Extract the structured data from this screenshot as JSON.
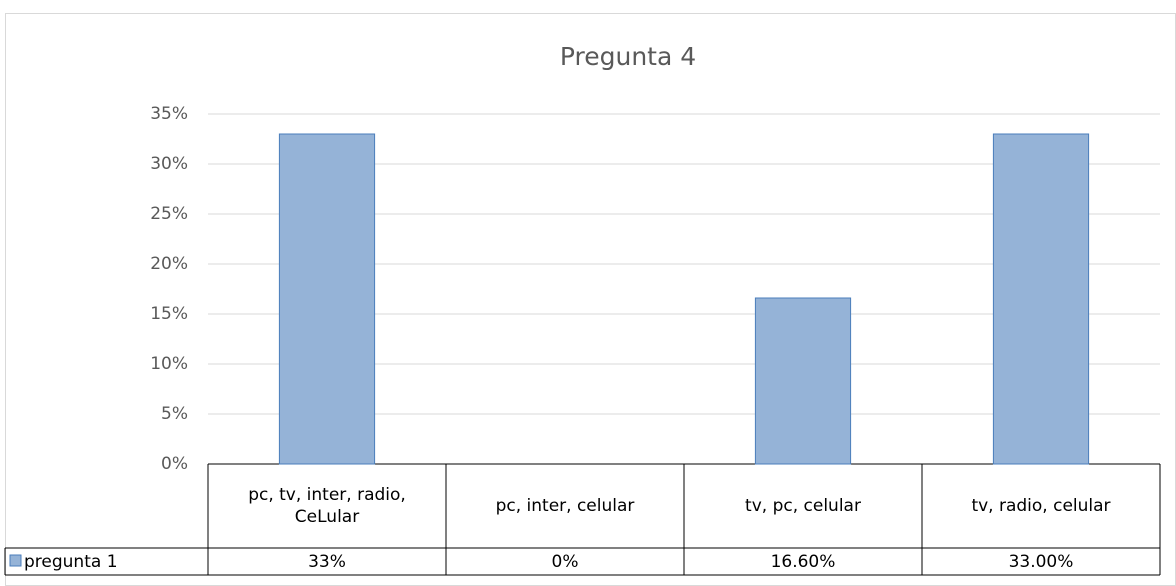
{
  "chart_data": {
    "type": "bar",
    "title": "Pregunta 4",
    "categories": [
      "pc, tv, inter, radio, CeLular",
      "pc, inter, celular",
      "tv, pc, celular",
      "tv, radio, celular"
    ],
    "series": [
      {
        "name": "pregunta 1",
        "color": "#95b3d7",
        "values": [
          33,
          0,
          16.6,
          33
        ],
        "value_labels": [
          "33%",
          "0%",
          "16.60%",
          "33.00%"
        ]
      }
    ],
    "ylim": [
      0,
      35
    ],
    "yticks": [
      {
        "value": 0,
        "label": "0%"
      },
      {
        "value": 5,
        "label": "5%"
      },
      {
        "value": 10,
        "label": "10%"
      },
      {
        "value": 15,
        "label": "15%"
      },
      {
        "value": 20,
        "label": "20%"
      },
      {
        "value": 25,
        "label": "25%"
      },
      {
        "value": 30,
        "label": "30%"
      },
      {
        "value": 35,
        "label": "35%"
      }
    ],
    "grid": true
  }
}
